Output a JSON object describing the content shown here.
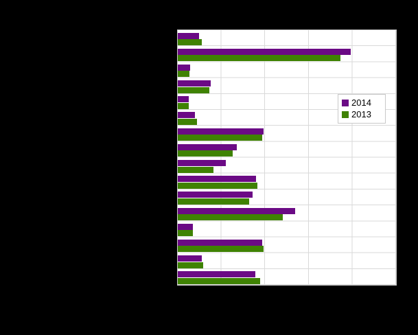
{
  "colors": {
    "background": "#000000",
    "plot_background": "#ffffff",
    "gridline": "#d9d9d9",
    "plot_border": "#c9c9c9",
    "series_2014": "#6b0a85",
    "series_2013": "#3f8203"
  },
  "legend": {
    "items": [
      {
        "label": "2014",
        "color": "#6b0a85"
      },
      {
        "label": "2013",
        "color": "#3f8203"
      }
    ]
  },
  "chart_data": {
    "type": "bar",
    "orientation": "horizontal",
    "title": "",
    "xlabel": "",
    "ylabel": "",
    "grid": true,
    "legend_position": "inside-right",
    "axis_tick_labels_visible": false,
    "category_labels_visible": false,
    "categories": [
      "",
      "",
      "",
      "",
      "",
      "",
      "",
      "",
      "",
      "",
      "",
      "",
      "",
      "",
      "",
      ""
    ],
    "xlim": [
      0,
      50
    ],
    "x_gridline_interval": 10,
    "series": [
      {
        "name": "2014",
        "color": "#6b0a85",
        "values": [
          4.8,
          39.7,
          2.9,
          7.5,
          2.5,
          4.0,
          19.7,
          13.6,
          11.0,
          17.9,
          17.2,
          26.9,
          3.4,
          19.4,
          5.5,
          17.7
        ]
      },
      {
        "name": "2013",
        "color": "#3f8203",
        "values": [
          5.5,
          37.3,
          2.7,
          7.3,
          2.5,
          4.4,
          19.4,
          12.5,
          8.2,
          18.3,
          16.3,
          24.0,
          3.4,
          19.7,
          5.8,
          18.8
        ]
      }
    ]
  }
}
